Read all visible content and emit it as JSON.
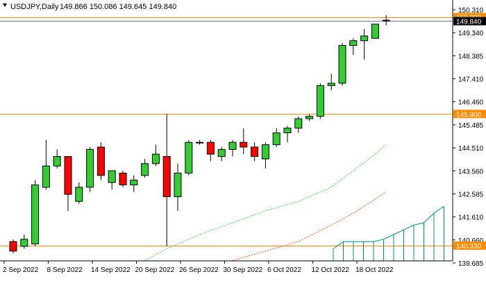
{
  "header": {
    "symbol_tf": "USDJPY,Daily",
    "ohlc": "149.866 150.086 149.645 149.840"
  },
  "price_axis": {
    "ticks": [
      "150.310",
      "149.340",
      "148.385",
      "147.410",
      "146.460",
      "145.485",
      "144.510",
      "143.560",
      "142.585",
      "141.610",
      "140.660",
      "139.685"
    ]
  },
  "horizontal_levels": [
    {
      "label": "150.000",
      "value": 150.0,
      "color": "#ff8c00"
    },
    {
      "label": "145.900",
      "value": 145.9,
      "color": "#ff8c00"
    },
    {
      "label": "140.330",
      "value": 140.33,
      "color": "#ff8c00"
    }
  ],
  "current_price": {
    "label": "149.840",
    "value": 149.84
  },
  "time_axis": {
    "labels": [
      "2 Sep 2022",
      "8 Sep 2022",
      "14 Sep 2022",
      "20 Sep 2022",
      "26 Sep 2022",
      "30 Sep 2022",
      "6 Oct 2022",
      "12 Oct 2022",
      "18 Oct 2022"
    ]
  },
  "colors": {
    "bull": "#33cc33",
    "bear": "#ff0000",
    "wick": "#000000",
    "green_ma": "#33cc33",
    "red_ma": "#ff4500",
    "histogram": "#008b8b",
    "level": "#ff8c00"
  },
  "chart_data": {
    "type": "candlestick",
    "ylim": [
      139.685,
      150.31
    ],
    "series": [
      {
        "o": 140.5,
        "h": 140.6,
        "l": 140.0,
        "c": 140.1
      },
      {
        "o": 140.3,
        "h": 140.8,
        "l": 140.2,
        "c": 140.6
      },
      {
        "o": 140.4,
        "h": 143.1,
        "l": 140.3,
        "c": 142.9
      },
      {
        "o": 142.8,
        "h": 144.8,
        "l": 142.7,
        "c": 143.7
      },
      {
        "o": 143.7,
        "h": 144.4,
        "l": 143.6,
        "c": 144.1
      },
      {
        "o": 144.1,
        "h": 144.1,
        "l": 141.8,
        "c": 142.5
      },
      {
        "o": 142.2,
        "h": 143.0,
        "l": 142.1,
        "c": 142.8
      },
      {
        "o": 142.8,
        "h": 144.5,
        "l": 142.6,
        "c": 144.4
      },
      {
        "o": 144.5,
        "h": 144.7,
        "l": 143.1,
        "c": 143.3
      },
      {
        "o": 143.0,
        "h": 143.5,
        "l": 142.7,
        "c": 143.5
      },
      {
        "o": 143.4,
        "h": 143.5,
        "l": 142.8,
        "c": 142.9
      },
      {
        "o": 142.9,
        "h": 143.3,
        "l": 142.6,
        "c": 143.1
      },
      {
        "o": 143.3,
        "h": 144.0,
        "l": 143.2,
        "c": 143.8
      },
      {
        "o": 143.8,
        "h": 144.6,
        "l": 143.7,
        "c": 144.2
      },
      {
        "o": 144.1,
        "h": 145.9,
        "l": 140.3,
        "c": 142.4
      },
      {
        "o": 142.4,
        "h": 143.8,
        "l": 141.8,
        "c": 143.4
      },
      {
        "o": 143.4,
        "h": 144.8,
        "l": 143.3,
        "c": 144.7
      },
      {
        "o": 144.7,
        "h": 144.8,
        "l": 144.6,
        "c": 144.7
      },
      {
        "o": 144.7,
        "h": 144.8,
        "l": 143.9,
        "c": 144.2
      },
      {
        "o": 144.1,
        "h": 144.5,
        "l": 143.9,
        "c": 144.4
      },
      {
        "o": 144.4,
        "h": 144.8,
        "l": 144.1,
        "c": 144.7
      },
      {
        "o": 144.7,
        "h": 145.3,
        "l": 144.2,
        "c": 144.5
      },
      {
        "o": 144.5,
        "h": 144.7,
        "l": 143.9,
        "c": 144.1
      },
      {
        "o": 144.0,
        "h": 144.7,
        "l": 143.6,
        "c": 144.6
      },
      {
        "o": 144.6,
        "h": 145.3,
        "l": 144.5,
        "c": 145.1
      },
      {
        "o": 145.1,
        "h": 145.4,
        "l": 144.7,
        "c": 145.3
      },
      {
        "o": 145.3,
        "h": 145.8,
        "l": 145.1,
        "c": 145.7
      },
      {
        "o": 145.7,
        "h": 145.9,
        "l": 145.6,
        "c": 145.8
      },
      {
        "o": 145.8,
        "h": 147.2,
        "l": 145.7,
        "c": 147.1
      },
      {
        "o": 147.1,
        "h": 147.6,
        "l": 146.9,
        "c": 147.2
      },
      {
        "o": 147.2,
        "h": 148.9,
        "l": 147.1,
        "c": 148.8
      },
      {
        "o": 148.8,
        "h": 149.1,
        "l": 148.4,
        "c": 149.0
      },
      {
        "o": 149.0,
        "h": 149.5,
        "l": 148.2,
        "c": 149.2
      },
      {
        "o": 149.1,
        "h": 149.7,
        "l": 149.1,
        "c": 149.7
      },
      {
        "o": 149.866,
        "h": 150.086,
        "l": 149.645,
        "c": 149.84
      }
    ],
    "green_ma": [
      {
        "i": 12,
        "v": 139.7
      },
      {
        "i": 14,
        "v": 140.2
      },
      {
        "i": 17,
        "v": 140.8
      },
      {
        "i": 20,
        "v": 141.3
      },
      {
        "i": 23,
        "v": 141.8
      },
      {
        "i": 26,
        "v": 142.2
      },
      {
        "i": 29,
        "v": 142.8
      },
      {
        "i": 31,
        "v": 143.5
      },
      {
        "i": 33,
        "v": 144.2
      },
      {
        "i": 34,
        "v": 144.6
      }
    ],
    "red_ma": [
      {
        "i": 20,
        "v": 139.7
      },
      {
        "i": 23,
        "v": 140.1
      },
      {
        "i": 26,
        "v": 140.5
      },
      {
        "i": 29,
        "v": 141.2
      },
      {
        "i": 31,
        "v": 141.7
      },
      {
        "i": 33,
        "v": 142.3
      },
      {
        "i": 34,
        "v": 142.6
      }
    ],
    "histogram": [
      {
        "i": 30,
        "v": 140.2
      },
      {
        "i": 31,
        "v": 140.5
      },
      {
        "i": 32,
        "v": 140.5
      },
      {
        "i": 33,
        "v": 140.5
      },
      {
        "i": 34,
        "v": 140.5
      },
      {
        "i": 35,
        "v": 140.6
      },
      {
        "i": 36,
        "v": 140.8
      },
      {
        "i": 37,
        "v": 141.0
      },
      {
        "i": 38,
        "v": 141.2
      },
      {
        "i": 39,
        "v": 141.3
      },
      {
        "i": 40,
        "v": 141.7
      },
      {
        "i": 41,
        "v": 142.0
      }
    ]
  }
}
